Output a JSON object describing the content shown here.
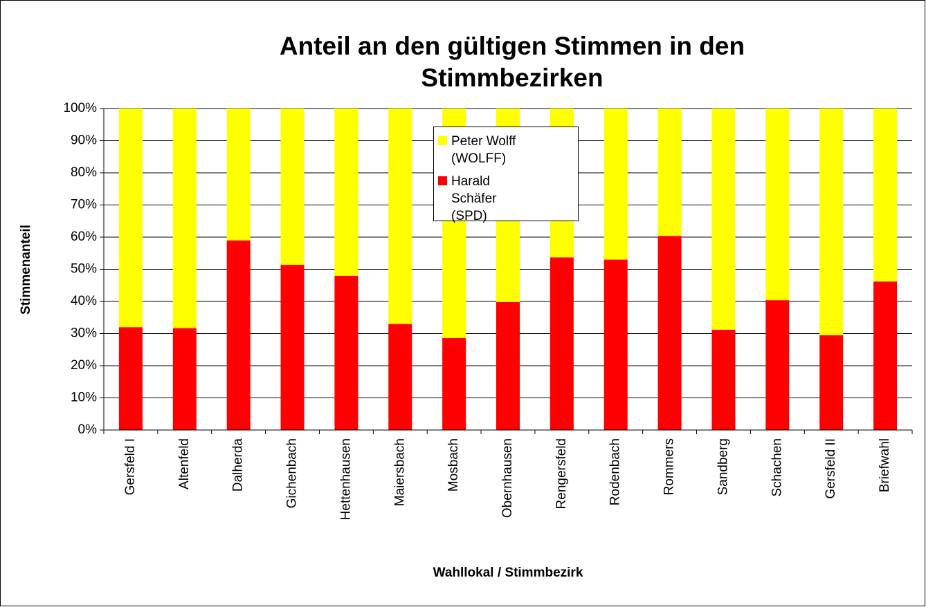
{
  "chart_data": {
    "type": "stacked_bar",
    "title": "Anteil an den gültigen Stimmen in den Stimmbezirken",
    "x_label": "Wahllokal / Stimmbezirk",
    "y_label": "Stimmenanteil",
    "categories": [
      "Gersfeld I",
      "Altenfeld",
      "Dalherda",
      "Gichenbach",
      "Hettenhausen",
      "Maiersbach",
      "Mosbach",
      "Obernhausen",
      "Rengersfeld",
      "Rodenbach",
      "Rommers",
      "Sandberg",
      "Schachen",
      "Gersfeld II",
      "Briefwahl"
    ],
    "series": [
      {
        "name": "Harald Schäfer (SPD)",
        "color": "#ff0000",
        "values": [
          32,
          31.7,
          59,
          51.4,
          48,
          33,
          28.6,
          39.8,
          53.7,
          53,
          60.4,
          31.2,
          40.4,
          29.5,
          46.2
        ]
      },
      {
        "name": "Peter Wolff (WOLFF)",
        "color": "#ffff00",
        "values": [
          68,
          68.3,
          41,
          48.6,
          52,
          67,
          71.4,
          60.2,
          46.3,
          47,
          39.6,
          68.8,
          59.6,
          70.5,
          53.8
        ]
      }
    ],
    "ylim": [
      0,
      100
    ],
    "yticks": [
      {
        "value": 0,
        "label": "0%"
      },
      {
        "value": 10,
        "label": "10%"
      },
      {
        "value": 20,
        "label": "20%"
      },
      {
        "value": 30,
        "label": "30%"
      },
      {
        "value": 40,
        "label": "40%"
      },
      {
        "value": 50,
        "label": "50%"
      },
      {
        "value": 60,
        "label": "60%"
      },
      {
        "value": 70,
        "label": "70%"
      },
      {
        "value": 80,
        "label": "80%"
      },
      {
        "value": 90,
        "label": "90%"
      },
      {
        "value": 100,
        "label": "100%"
      }
    ],
    "grid": true
  }
}
